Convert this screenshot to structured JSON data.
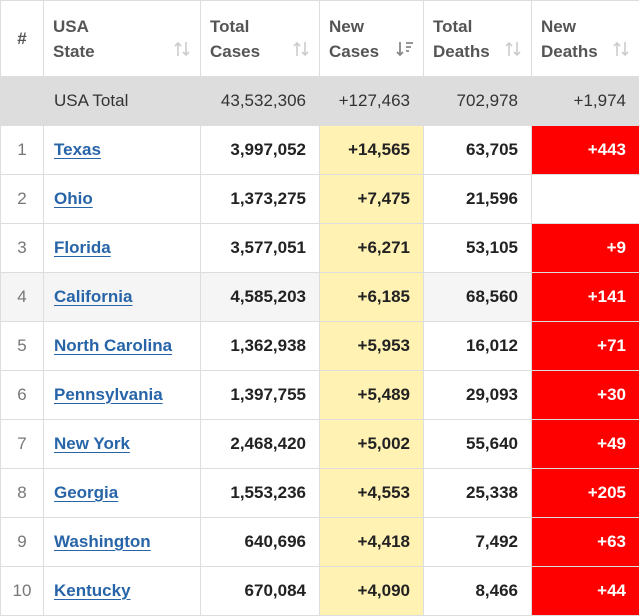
{
  "colors": {
    "new_cases_bg": "#fff2b3",
    "new_deaths_bg": "#ff0000",
    "link": "#2764a8",
    "total_row_bg": "#dddddd"
  },
  "header": {
    "num": "#",
    "state": [
      "USA",
      "State"
    ],
    "total_cases": [
      "Total",
      "Cases"
    ],
    "new_cases": [
      "New",
      "Cases"
    ],
    "total_deaths": [
      "Total",
      "Deaths"
    ],
    "new_deaths": [
      "New",
      "Deaths"
    ],
    "sort_icons": [
      "sort-icon",
      "sort-desc-active-icon"
    ]
  },
  "total": {
    "label": "USA Total",
    "total_cases": "43,532,306",
    "new_cases": "+127,463",
    "total_deaths": "702,978",
    "new_deaths": "+1,974"
  },
  "rows": [
    {
      "num": "1",
      "state": "Texas",
      "total_cases": "3,997,052",
      "new_cases": "+14,565",
      "total_deaths": "63,705",
      "new_deaths": "+443"
    },
    {
      "num": "2",
      "state": "Ohio",
      "total_cases": "1,373,275",
      "new_cases": "+7,475",
      "total_deaths": "21,596",
      "new_deaths": ""
    },
    {
      "num": "3",
      "state": "Florida",
      "total_cases": "3,577,051",
      "new_cases": "+6,271",
      "total_deaths": "53,105",
      "new_deaths": "+9"
    },
    {
      "num": "4",
      "state": "California",
      "total_cases": "4,585,203",
      "new_cases": "+6,185",
      "total_deaths": "68,560",
      "new_deaths": "+141"
    },
    {
      "num": "5",
      "state": "North Carolina",
      "total_cases": "1,362,938",
      "new_cases": "+5,953",
      "total_deaths": "16,012",
      "new_deaths": "+71"
    },
    {
      "num": "6",
      "state": "Pennsylvania",
      "total_cases": "1,397,755",
      "new_cases": "+5,489",
      "total_deaths": "29,093",
      "new_deaths": "+30"
    },
    {
      "num": "7",
      "state": "New York",
      "total_cases": "2,468,420",
      "new_cases": "+5,002",
      "total_deaths": "55,640",
      "new_deaths": "+49"
    },
    {
      "num": "8",
      "state": "Georgia",
      "total_cases": "1,553,236",
      "new_cases": "+4,553",
      "total_deaths": "25,338",
      "new_deaths": "+205"
    },
    {
      "num": "9",
      "state": "Washington",
      "total_cases": "640,696",
      "new_cases": "+4,418",
      "total_deaths": "7,492",
      "new_deaths": "+63"
    },
    {
      "num": "10",
      "state": "Kentucky",
      "total_cases": "670,084",
      "new_cases": "+4,090",
      "total_deaths": "8,466",
      "new_deaths": "+44"
    }
  ]
}
